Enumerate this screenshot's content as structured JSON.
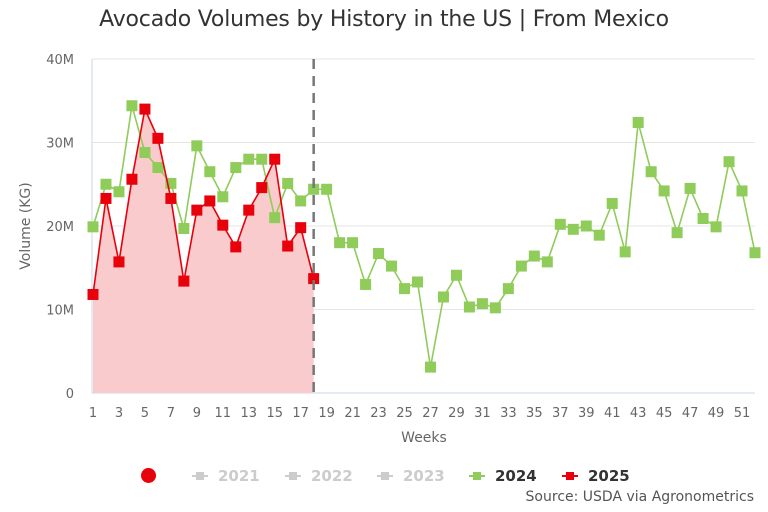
{
  "title": "Avocado Volumes by History in the US | From Mexico",
  "source": "Source: USDA via Agronometrics",
  "legend": {
    "items": [
      {
        "label": "2021",
        "visible": false,
        "color": "#cccccc"
      },
      {
        "label": "2022",
        "visible": false,
        "color": "#cccccc"
      },
      {
        "label": "2023",
        "visible": false,
        "color": "#cccccc"
      },
      {
        "label": "2024",
        "visible": true,
        "color": "#8fcc5a"
      },
      {
        "label": "2025",
        "visible": true,
        "color": "#e8000b"
      }
    ],
    "toggle_color": "#e8000b"
  },
  "chart_data": {
    "type": "line",
    "title": "Avocado Volumes by History in the US | From Mexico",
    "xlabel": "Weeks",
    "ylabel": "Volume (KG)",
    "ylim": [
      0,
      40000000
    ],
    "xlim": [
      1,
      52
    ],
    "y_ticks": [
      {
        "value": 0,
        "label": "0"
      },
      {
        "value": 10000000,
        "label": "10M"
      },
      {
        "value": 20000000,
        "label": "20M"
      },
      {
        "value": 30000000,
        "label": "30M"
      },
      {
        "value": 40000000,
        "label": "40M"
      }
    ],
    "x_ticks": [
      "1",
      "3",
      "5",
      "7",
      "9",
      "11",
      "13",
      "15",
      "17",
      "19",
      "21",
      "23",
      "25",
      "27",
      "29",
      "31",
      "33",
      "35",
      "37",
      "39",
      "41",
      "43",
      "45",
      "47",
      "49",
      "51"
    ],
    "grid": true,
    "current_week_marker": 18,
    "series": [
      {
        "name": "2024",
        "color": "#8fcc5a",
        "fill": false,
        "x": [
          1,
          2,
          3,
          4,
          5,
          6,
          7,
          8,
          9,
          10,
          11,
          12,
          13,
          14,
          15,
          16,
          17,
          18,
          19,
          20,
          21,
          22,
          23,
          24,
          25,
          26,
          27,
          28,
          29,
          30,
          31,
          32,
          33,
          34,
          35,
          36,
          37,
          38,
          39,
          40,
          41,
          42,
          43,
          44,
          45,
          46,
          47,
          48,
          49,
          50,
          51,
          52
        ],
        "values": [
          19.9,
          25.0,
          24.1,
          34.4,
          28.8,
          27.0,
          25.1,
          19.7,
          29.6,
          26.5,
          23.5,
          27.0,
          28.0,
          28.0,
          21.0,
          25.1,
          23.0,
          24.4,
          24.4,
          18.0,
          18.0,
          13.0,
          16.7,
          15.2,
          12.5,
          13.3,
          3.1,
          11.5,
          14.1,
          10.3,
          10.7,
          10.2,
          12.5,
          15.2,
          16.4,
          15.7,
          20.2,
          19.6,
          20.0,
          18.9,
          22.7,
          16.9,
          32.4,
          26.5,
          24.2,
          19.2,
          24.5,
          20.9,
          19.9,
          27.7,
          24.2,
          16.8
        ],
        "unit": "M"
      },
      {
        "name": "2025",
        "color": "#e8000b",
        "fill": true,
        "fill_color": "#f9cbcc",
        "x": [
          1,
          2,
          3,
          4,
          5,
          6,
          7,
          8,
          9,
          10,
          11,
          12,
          13,
          14,
          15,
          16,
          17,
          18
        ],
        "values": [
          11.8,
          23.3,
          15.7,
          25.6,
          34.0,
          30.5,
          23.3,
          13.4,
          21.9,
          23.0,
          20.1,
          17.5,
          21.9,
          24.6,
          28.0,
          17.6,
          19.8,
          13.7
        ],
        "unit": "M"
      }
    ]
  }
}
